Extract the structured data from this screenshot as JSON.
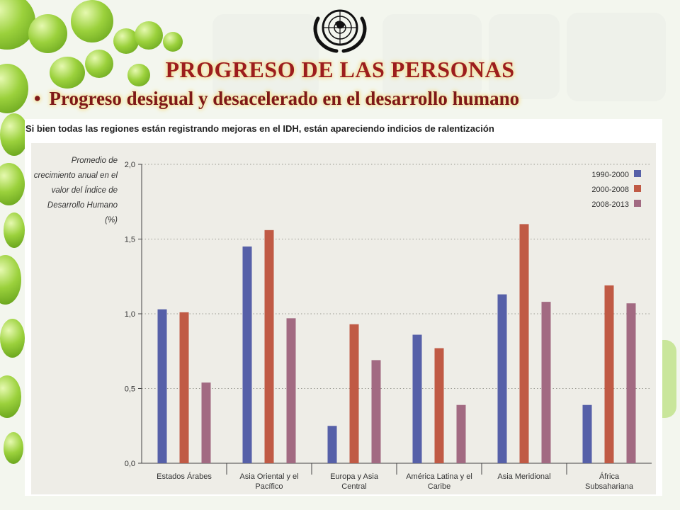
{
  "slide": {
    "title": "PROGRESO DE LAS PERSONAS",
    "bullet": "Progreso desigual y desacelerado en el desarrollo humano",
    "caption": "Si bien todas las regiones están registrando mejoras en el IDH, están apareciendo indicios de ralentización"
  },
  "chart_data": {
    "type": "bar",
    "ylabel_lines": [
      "Promedio de",
      "crecimiento anual en el",
      "valor del Índice de",
      "Desarrollo Humano",
      "(%)"
    ],
    "categories": [
      [
        "Estados Árabes"
      ],
      [
        "Asia Oriental y el",
        "Pacífico"
      ],
      [
        "Europa y Asia",
        "Central"
      ],
      [
        "América Latina y el",
        "Caribe"
      ],
      [
        "Asia Meridional"
      ],
      [
        "África",
        "Subsahariana"
      ]
    ],
    "series": [
      {
        "name": "1990-2000",
        "color": "#5660a8",
        "values": [
          1.03,
          1.45,
          0.25,
          0.86,
          1.13,
          0.39
        ]
      },
      {
        "name": "2000-2008",
        "color": "#c05a45",
        "values": [
          1.01,
          1.56,
          0.93,
          0.77,
          1.6,
          1.19
        ]
      },
      {
        "name": "2008-2013",
        "color": "#a26a82",
        "values": [
          0.54,
          0.97,
          0.69,
          0.39,
          1.08,
          1.07
        ]
      }
    ],
    "ylim": [
      0,
      2.0
    ],
    "yticks": [
      "0,0",
      "0,5",
      "1,0",
      "1,5",
      "2,0"
    ],
    "ytick_values": [
      0,
      0.5,
      1.0,
      1.5,
      2.0
    ],
    "grid": true,
    "legend_position": "top-right",
    "plot_background": "#eeede7"
  }
}
